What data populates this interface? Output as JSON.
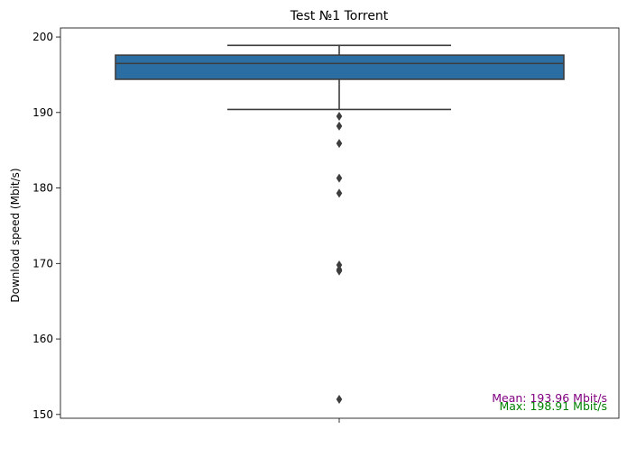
{
  "chart_data": {
    "type": "box",
    "title": "Test №1 Torrent",
    "xlabel": "",
    "ylabel": "Download speed (Mbit/s)",
    "ylim": [
      149.5,
      201.2
    ],
    "yticks": [
      150,
      160,
      170,
      180,
      190,
      200
    ],
    "grid": false,
    "box": {
      "q1": 194.4,
      "median": 196.5,
      "q3": 197.6,
      "whisker_low": 190.4,
      "whisker_high": 198.9,
      "color": "#2b6ea4"
    },
    "outliers": [
      189.5,
      188.2,
      185.9,
      181.3,
      179.3,
      169.8,
      169.2,
      169.0,
      152.0
    ],
    "annotations": [
      {
        "text": "Mean: 193.96 Mbit/s",
        "color": "#800080",
        "position": "bottom-right"
      },
      {
        "text": "Max: 198.91 Mbit/s",
        "color": "#008000",
        "position": "bottom-right"
      }
    ]
  }
}
